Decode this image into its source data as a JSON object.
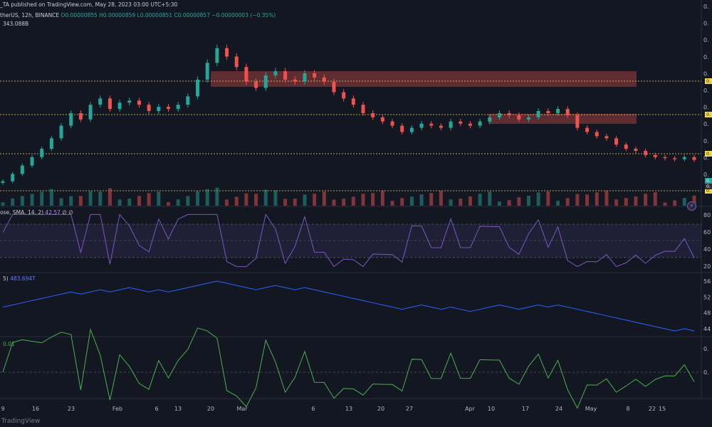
{
  "header": {
    "publisher": "_TA published on TradingView.com, May 28, 2023 03:00 UTC+5:30",
    "symbol_prefix": "therUS, 12h, BINANCE ",
    "ohlc": "O0.00000855 H0.00000859 L0.00000851 C0.00000857 −0.00000003 (−0.35%)",
    "volume": "343.088B"
  },
  "indicators": {
    "rsi_label": "ose, SMA, 14, 2)",
    "rsi_value": "42.57",
    "rsi_extra": "∅ ∅",
    "obv_label": "5)",
    "obv_value": "483.694T",
    "osc_label": "0.01"
  },
  "watermark": "TradingView",
  "colors": {
    "up": "#26a69a",
    "down": "#ef5350",
    "rsi": "#7e57c2",
    "obv": "#2962ff",
    "osc": "#4caf50",
    "level": "#f2d94e",
    "zone": "#ef5350"
  },
  "chart_data": {
    "type": "candlestick",
    "x_tick_labels": [
      "9",
      "16",
      "23",
      "Feb",
      "6",
      "13",
      "20",
      "Mar",
      "6",
      "13",
      "20",
      "27",
      "Apr",
      "10",
      "17",
      "24",
      "May",
      "8",
      "15",
      "22"
    ],
    "price_axis_labels": [
      "0.",
      "0.",
      "0.",
      "0.",
      "0.",
      "0.",
      "0.",
      "0.",
      "0.",
      "0.",
      "0."
    ],
    "rsi_axis_labels": [
      "80",
      "60",
      "40",
      "20"
    ],
    "obv_axis_labels": [
      "56",
      "52",
      "48",
      "44"
    ],
    "osc_axis_labels": [
      "0.",
      "0."
    ],
    "price_levels": [
      "0.",
      "0.",
      "0.",
      "0."
    ],
    "last_price_tags": [
      "0.",
      "0."
    ],
    "closes": [
      7.55e-06,
      7.9e-06,
      8.3e-06,
      8.7e-06,
      9.1e-06,
      9.6e-06,
      1.02e-05,
      1.08e-05,
      1.05e-05,
      1.12e-05,
      1.15e-05,
      1.1e-05,
      1.13e-05,
      1.14e-05,
      1.12e-05,
      1.09e-05,
      1.11e-05,
      1.1e-05,
      1.12e-05,
      1.16e-05,
      1.24e-05,
      1.32e-05,
      1.39e-05,
      1.35e-05,
      1.3e-05,
      1.23e-05,
      1.2e-05,
      1.26e-05,
      1.28e-05,
      1.24e-05,
      1.23e-05,
      1.27e-05,
      1.25e-05,
      1.23e-05,
      1.18e-05,
      1.15e-05,
      1.12e-05,
      1.08e-05,
      1.06e-05,
      1.04e-05,
      1.02e-05,
      9.9e-06,
      1.01e-05,
      1.03e-05,
      1.02e-05,
      1.01e-05,
      1.04e-05,
      1.03e-05,
      1.02e-05,
      1.04e-05,
      1.06e-05,
      1.08e-05,
      1.07e-05,
      1.05e-05,
      1.06e-05,
      1.09e-05,
      1.08e-05,
      1.1e-05,
      1.07e-05,
      1.01e-05,
      9.9e-06,
      9.7e-06,
      9.6e-06,
      9.3e-06,
      9.1e-06,
      9e-06,
      8.8e-06,
      8.7e-06,
      8.65e-06,
      8.6e-06,
      8.7e-06,
      8.57e-06
    ]
  }
}
